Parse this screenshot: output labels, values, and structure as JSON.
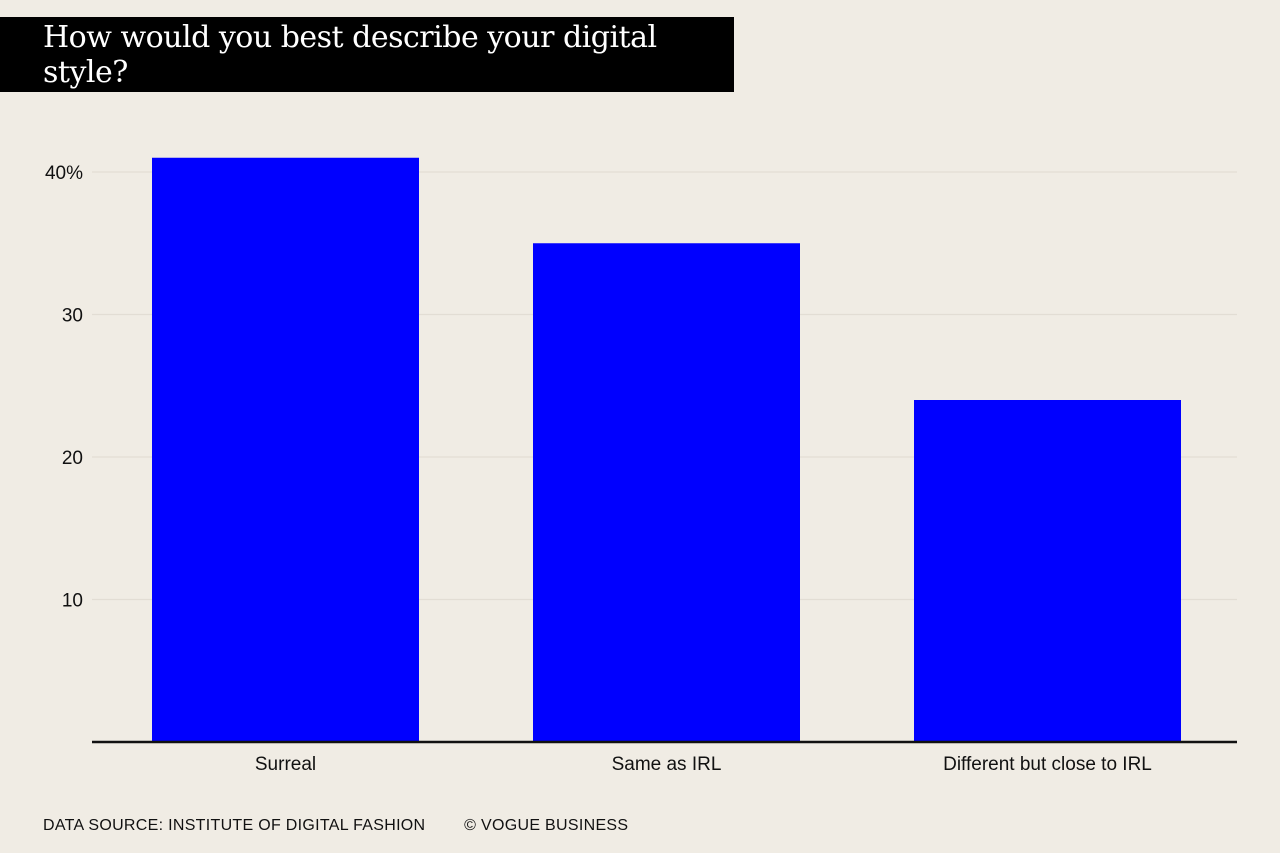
{
  "chart_data": {
    "type": "bar",
    "title": "How would you best describe your digital style?",
    "categories": [
      "Surreal",
      "Same as IRL",
      "Different but close to IRL"
    ],
    "values": [
      41,
      35,
      24
    ],
    "ylim": [
      0,
      40
    ],
    "yticks": [
      10,
      20,
      30,
      40
    ],
    "ytick_labels": [
      "10",
      "20",
      "30",
      "40%"
    ],
    "xlabel": "",
    "ylabel": "",
    "grid": true,
    "bar_color": "#0000ff"
  },
  "footer": {
    "source": "DATA SOURCE: INSTITUTE OF DIGITAL FASHION",
    "credit": "© VOGUE BUSINESS"
  }
}
